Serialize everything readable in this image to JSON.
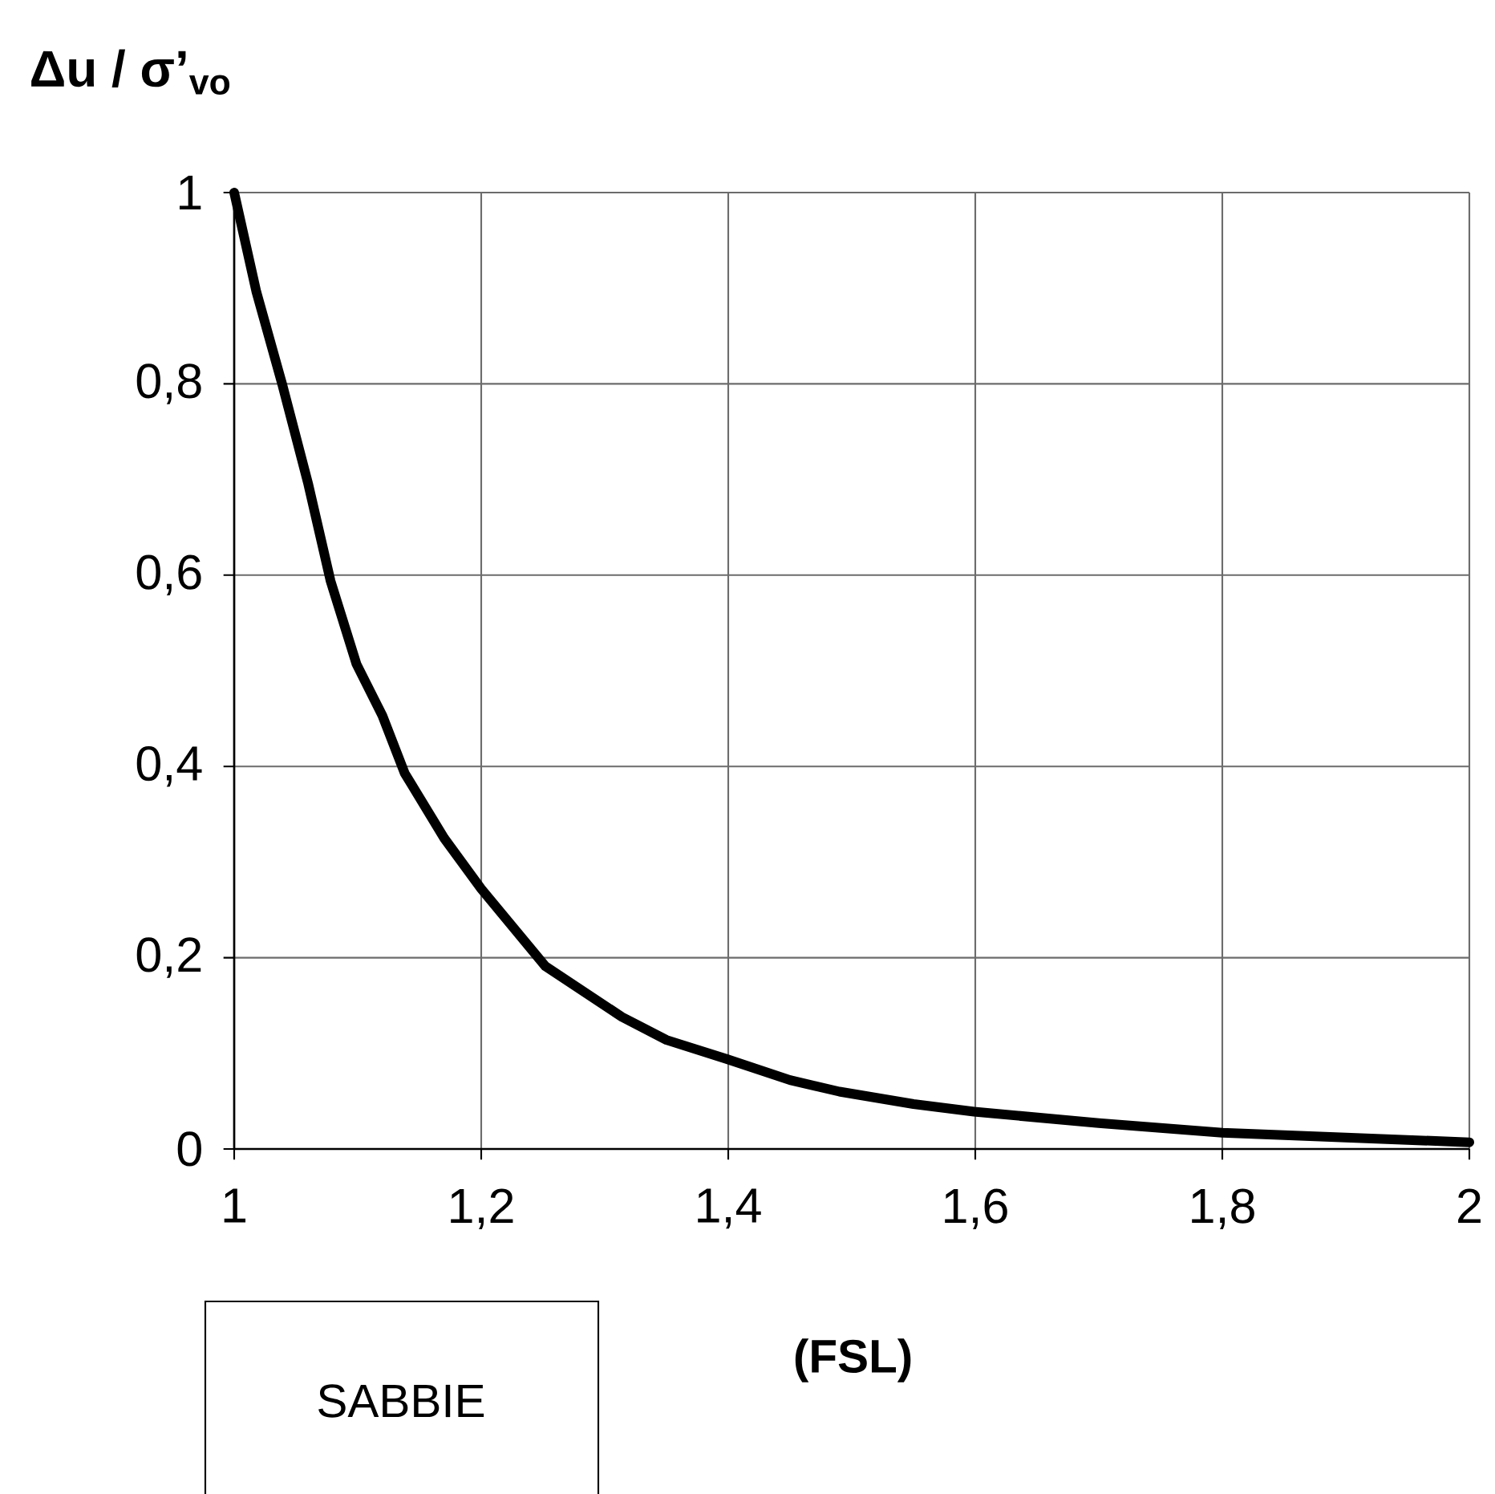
{
  "chart_data": {
    "type": "line",
    "ylabel": "Δu / σ’$_{vo}$",
    "xlabel": "(FSL)",
    "annotations": [
      "SABBIE"
    ],
    "x": [
      1.0,
      1.018,
      1.039,
      1.06,
      1.078,
      1.099,
      1.12,
      1.138,
      1.17,
      1.2,
      1.252,
      1.314,
      1.35,
      1.399,
      1.45,
      1.49,
      1.55,
      1.599,
      1.7,
      1.8,
      1.9,
      2.0
    ],
    "series": [
      {
        "color": "#000000",
        "values": [
          1.0,
          0.896,
          0.799,
          0.695,
          0.594,
          0.507,
          0.453,
          0.393,
          0.325,
          0.272,
          0.191,
          0.138,
          0.114,
          0.094,
          0.072,
          0.06,
          0.047,
          0.039,
          0.027,
          0.017,
          0.012,
          0.007
        ]
      }
    ],
    "xlim": [
      1,
      2
    ],
    "ylim": [
      0,
      1
    ],
    "xticks": [
      1,
      {
        "value": 1.2,
        "label": "1,2"
      },
      {
        "value": 1.4,
        "label": "1,4"
      },
      {
        "value": 1.6,
        "label": "1,6"
      },
      {
        "value": 1.8,
        "label": "1,8"
      },
      2
    ],
    "yticks": [
      0,
      {
        "value": 0.2,
        "label": "0,2"
      },
      {
        "value": 0.4,
        "label": "0,4"
      },
      {
        "value": 0.6,
        "label": "0,6"
      },
      {
        "value": 0.8,
        "label": "0,8"
      },
      1
    ],
    "grid": true,
    "marker": "none",
    "line_style": "solid"
  }
}
